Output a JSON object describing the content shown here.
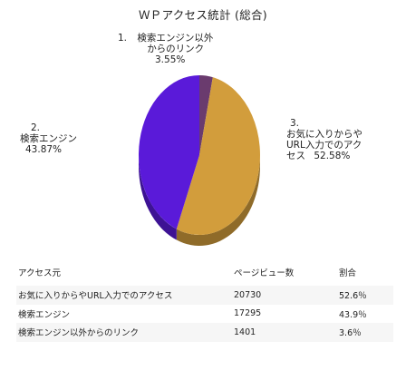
{
  "title": "ＷＰアクセス統計 (総合)",
  "chart_data": {
    "type": "pie",
    "labels": [
      "検索エンジン以外からのリンク",
      "検索エンジン",
      "お気に入りからやURL入力でのアクセス"
    ],
    "values": [
      3.55,
      43.87,
      52.58
    ],
    "colors": [
      "#6a3b6e",
      "#5a1ad9",
      "#d29d3c"
    ],
    "annotations": [
      {
        "index": "1.",
        "lines": [
          "検索エンジン以外",
          "からのリンク"
        ],
        "value": "3.55%"
      },
      {
        "index": "2.",
        "lines": [
          "検索エンジン"
        ],
        "value": "43.87%"
      },
      {
        "index": "3.",
        "lines": [
          "お気に入りからや",
          "URL入力でのアク",
          "セス"
        ],
        "value": "52.58%"
      }
    ]
  },
  "table": {
    "headers": [
      "アクセス元",
      "ページビュー数",
      "割合"
    ],
    "rows": [
      [
        "お気に入りからやURL入力でのアクセス",
        "20730",
        "52.6％"
      ],
      [
        "検索エンジン",
        "17295",
        "43.9％"
      ],
      [
        "検索エンジン以外からのリンク",
        "1401",
        "3.6％"
      ]
    ]
  }
}
